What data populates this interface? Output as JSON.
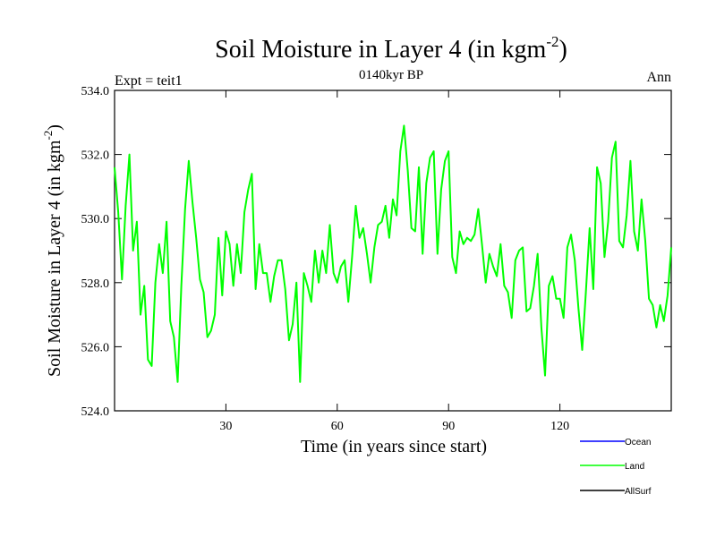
{
  "chart_data": {
    "type": "line",
    "title": "Soil Moisture in Layer 4 (in kgm",
    "title_sup": "-2",
    "title_close": ")",
    "subtitle": "0140kyr BP",
    "left_label": "Expt = teit1",
    "right_label": "Ann",
    "xlabel": "Time (in years since start)",
    "ylabel": "Soil Moisture in Layer 4 (in kgm",
    "ylabel_sup": "-2",
    "ylabel_close": ")",
    "xlim": [
      0,
      150
    ],
    "ylim": [
      524,
      534
    ],
    "x_ticks": [
      30,
      60,
      90,
      120
    ],
    "x_tick_labels": [
      "30",
      "60",
      "90",
      "120"
    ],
    "y_ticks": [
      524,
      526,
      528,
      530,
      532,
      534
    ],
    "y_tick_labels": [
      "524.0",
      "526.0",
      "528.0",
      "530.0",
      "532.0",
      "534.0"
    ],
    "legend": [
      {
        "name": "Ocean",
        "color": "#0000ff"
      },
      {
        "name": "Land",
        "color": "#00ff00"
      },
      {
        "name": "AllSurf",
        "color": "#000000"
      }
    ],
    "series": [
      {
        "name": "Land",
        "color": "#00ff00",
        "x": [
          0,
          1,
          2,
          3,
          4,
          5,
          6,
          7,
          8,
          9,
          10,
          11,
          12,
          13,
          14,
          15,
          16,
          17,
          18,
          19,
          20,
          21,
          22,
          23,
          24,
          25,
          26,
          27,
          28,
          29,
          30,
          31,
          32,
          33,
          34,
          35,
          36,
          37,
          38,
          39,
          40,
          41,
          42,
          43,
          44,
          45,
          46,
          47,
          48,
          49,
          50,
          51,
          52,
          53,
          54,
          55,
          56,
          57,
          58,
          59,
          60,
          61,
          62,
          63,
          64,
          65,
          66,
          67,
          68,
          69,
          70,
          71,
          72,
          73,
          74,
          75,
          76,
          77,
          78,
          79,
          80,
          81,
          82,
          83,
          84,
          85,
          86,
          87,
          88,
          89,
          90,
          91,
          92,
          93,
          94,
          95,
          96,
          97,
          98,
          99,
          100,
          101,
          102,
          103,
          104,
          105,
          106,
          107,
          108,
          109,
          110,
          111,
          112,
          113,
          114,
          115,
          116,
          117,
          118,
          119,
          120,
          121,
          122,
          123,
          124,
          125,
          126,
          127,
          128,
          129,
          130,
          131,
          132,
          133,
          134,
          135,
          136,
          137,
          138,
          139,
          140,
          141,
          142,
          143,
          144,
          145,
          146,
          147,
          148,
          149,
          150
        ],
        "values": [
          531.6,
          530.2,
          528.1,
          530.4,
          532.0,
          529.0,
          529.9,
          527.0,
          527.9,
          525.6,
          525.4,
          528.0,
          529.2,
          528.3,
          529.9,
          526.8,
          526.3,
          524.9,
          527.9,
          530.3,
          531.8,
          530.5,
          529.4,
          528.1,
          527.7,
          526.3,
          526.5,
          527.0,
          529.4,
          527.6,
          529.6,
          529.2,
          527.9,
          529.2,
          528.3,
          530.2,
          530.9,
          531.4,
          527.8,
          529.2,
          528.3,
          528.3,
          527.4,
          528.2,
          528.7,
          528.7,
          527.8,
          526.2,
          526.7,
          528.0,
          524.9,
          528.3,
          527.9,
          527.4,
          529.0,
          528.0,
          529.0,
          528.3,
          529.8,
          528.3,
          528.0,
          528.5,
          528.7,
          527.4,
          528.8,
          530.4,
          529.4,
          529.7,
          528.9,
          528.0,
          529.1,
          529.8,
          529.9,
          530.4,
          529.4,
          530.6,
          530.1,
          532.1,
          532.9,
          531.5,
          529.7,
          529.6,
          531.6,
          528.9,
          531.1,
          531.9,
          532.1,
          528.9,
          530.9,
          531.8,
          532.1,
          528.8,
          528.3,
          529.6,
          529.2,
          529.4,
          529.3,
          529.5,
          530.3,
          529.2,
          528.0,
          528.9,
          528.5,
          528.2,
          529.2,
          527.9,
          527.7,
          526.9,
          528.7,
          529.0,
          529.1,
          527.1,
          527.2,
          527.9,
          528.9,
          526.6,
          525.1,
          527.9,
          528.2,
          527.5,
          527.5,
          526.9,
          529.1,
          529.5,
          528.7,
          527.2,
          525.9,
          527.7,
          529.7,
          527.8,
          531.6,
          531.1,
          528.8,
          529.9,
          531.9,
          532.4,
          529.3,
          529.1,
          530.1,
          531.8,
          529.6,
          529.0,
          530.6,
          529.3,
          527.5,
          527.3,
          526.6,
          527.3,
          526.8,
          527.6,
          529.1
        ]
      }
    ]
  }
}
